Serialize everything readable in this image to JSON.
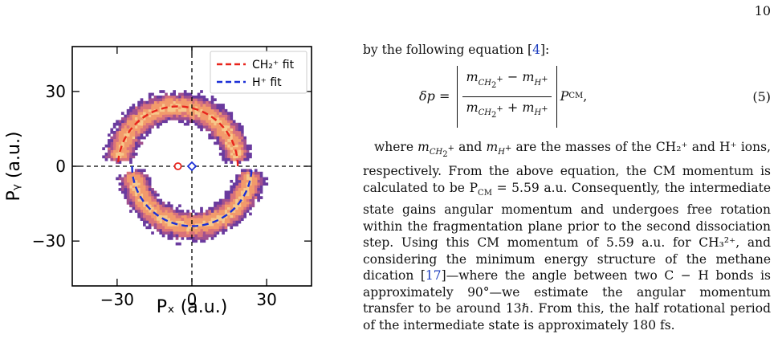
{
  "page_number": "10",
  "figure": {
    "legend": [
      {
        "label": "CH₂⁺ fit",
        "color": "#e8241c"
      },
      {
        "label": "H⁺ fit",
        "color": "#1b2fd6"
      }
    ],
    "xlabel": "Pₓ (a.u.)",
    "ylabel": "Pᵧ (a.u.)",
    "x_ticks": [
      "−30",
      "0",
      "30"
    ],
    "y_ticks": [
      "30",
      "0",
      "−30"
    ],
    "markers": {
      "ch2_center_color": "#e8241c",
      "h_center_color": "#1b2fd6"
    }
  },
  "chart_data": {
    "type": "scatter",
    "xlim": [
      -48,
      48
    ],
    "ylim": [
      -48,
      48
    ],
    "x_ticks": [
      -30,
      0,
      30
    ],
    "y_ticks": [
      -30,
      0,
      30
    ],
    "series": [
      {
        "name": "CH₂⁺ fit",
        "center": [
          -5.6,
          0
        ],
        "radius": 24,
        "color": "#e8241c"
      },
      {
        "name": "H⁺ fit",
        "center": [
          0,
          0
        ],
        "radius": 24,
        "color": "#1b2fd6"
      }
    ]
  },
  "text": {
    "intro": "by the following equation [",
    "intro_cite": "4",
    "intro_end": "]:",
    "eq_number": "(5)",
    "para_1": "where",
    "para_2": "and",
    "para_3": "are the masses of the CH₂⁺ and H⁺ ions, respectively. From the above equation, the CM momentum is calculated to be P",
    "para_4": " = 5.59 a.u. Consequently, the intermediate state gains angular momentum and undergoes free rotation within the fragmentation plane prior to the second dissociation step. Using this CM momentum of 5.59 a.u. for CH₃²⁺, and considering the minimum energy structure of the methane dication [",
    "para_cite": "17",
    "para_5": "]—where the angle between two C − H bonds is approximately 90°—we estimate the angular momentum transfer to be around 13ℏ. From this, the half rotational period of the intermediate state is approximately 180 fs."
  }
}
